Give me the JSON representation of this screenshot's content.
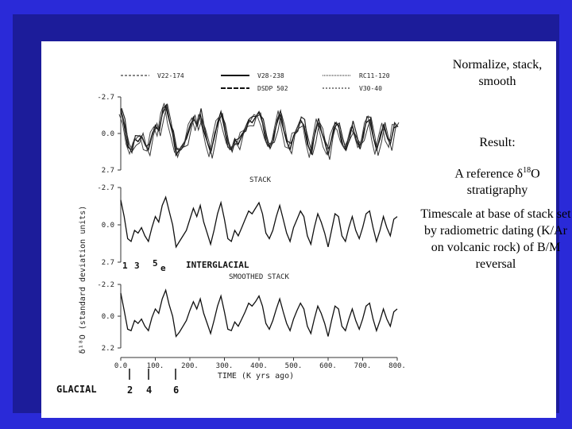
{
  "slide": {
    "caption": {
      "title": "Normalize, stack, smooth",
      "result_label": "Result:",
      "reference_prefix": "A reference δ",
      "reference_sup": "18",
      "reference_suffix": "O stratigraphy",
      "timescale": "Timescale at base of stack set by radiometric dating (K/Ar on volcanic rock) of B/M reversal"
    }
  },
  "figure": {
    "legend": [
      "V22-174",
      "V28-238",
      "RC11-120",
      "DSDP 502",
      "V30-40"
    ],
    "y_axis_label": "δ¹⁸O (standard deviation units)",
    "panel_labels": {
      "stack": "STACK",
      "smoothed": "SMOOTHED STACK"
    },
    "panels": [
      {
        "ticks": [
          "-2.7",
          "0.0",
          "2.7"
        ]
      },
      {
        "ticks": [
          "-2.7",
          "0.0",
          "2.7"
        ]
      },
      {
        "ticks": [
          "-2.2",
          "0.0",
          "2.2"
        ]
      }
    ],
    "x_ticks": [
      "0.0",
      "100.",
      "200.",
      "300.",
      "400.",
      "500.",
      "600.",
      "700.",
      "800."
    ],
    "x_label": "TIME (K yrs ago)",
    "annotations": {
      "interglacial": "INTERGLACIAL",
      "glacial": "GLACIAL",
      "interglacial_stages": [
        "1",
        "3",
        "5",
        "e"
      ],
      "glacial_stages": [
        "2",
        "4",
        "6"
      ]
    }
  },
  "chart_data": {
    "type": "line",
    "x": [
      0,
      10,
      20,
      30,
      40,
      50,
      60,
      70,
      80,
      90,
      100,
      110,
      120,
      130,
      140,
      150,
      160,
      170,
      180,
      190,
      200,
      210,
      220,
      230,
      240,
      250,
      260,
      270,
      280,
      290,
      300,
      310,
      320,
      330,
      340,
      350,
      360,
      370,
      380,
      390,
      400,
      410,
      420,
      430,
      440,
      450,
      460,
      470,
      480,
      490,
      500,
      510,
      520,
      530,
      540,
      550,
      560,
      570,
      580,
      590,
      600,
      610,
      620,
      630,
      640,
      650,
      660,
      670,
      680,
      690,
      700,
      710,
      720,
      730,
      740,
      750,
      760,
      770,
      780,
      790,
      800
    ],
    "series": [
      {
        "values": [
          -1.8,
          -0.6,
          1.0,
          1.2,
          0.4,
          0.6,
          0.2,
          0.8,
          1.2,
          0.2,
          -0.6,
          -0.2,
          -1.4,
          -2.0,
          -1.0,
          0.0,
          1.6,
          1.2,
          0.8,
          0.4,
          -0.4,
          -1.2,
          -0.6,
          -1.4,
          -0.2,
          0.6,
          1.4,
          0.4,
          -0.8,
          -1.6,
          -0.4,
          1.0,
          1.2,
          0.4,
          0.8,
          0.2,
          -0.4,
          -1.0,
          -0.8,
          -1.2,
          -1.6,
          -0.8,
          0.6,
          1.0,
          0.4,
          -0.6,
          -1.4,
          -0.4,
          0.6,
          1.2,
          0.2,
          -0.4,
          -1.0,
          -0.6,
          0.8,
          1.4,
          0.2,
          -0.8,
          -0.2,
          0.6,
          1.6,
          0.4,
          -0.8,
          -0.6,
          0.8,
          1.2,
          0.2,
          -0.6,
          0.4,
          1.0,
          0.2,
          -0.8,
          -1.0,
          0.2,
          1.2,
          0.4,
          -0.6,
          0.2,
          0.8,
          -0.4,
          -0.6
        ]
      },
      {
        "values": [
          -1.8,
          -0.6,
          1.0,
          1.2,
          0.4,
          0.6,
          0.2,
          0.8,
          1.2,
          0.2,
          -0.6,
          -0.2,
          -1.4,
          -2.0,
          -1.0,
          0.0,
          1.6,
          1.2,
          0.8,
          0.4,
          -0.4,
          -1.2,
          -0.6,
          -1.4,
          -0.2,
          0.6,
          1.4,
          0.4,
          -0.8,
          -1.6,
          -0.4,
          1.0,
          1.2,
          0.4,
          0.8,
          0.2,
          -0.4,
          -1.0,
          -0.8,
          -1.2,
          -1.6,
          -0.8,
          0.6,
          1.0,
          0.4,
          -0.6,
          -1.4,
          -0.4,
          0.6,
          1.2,
          0.2,
          -0.4,
          -1.0,
          -0.6,
          0.8,
          1.4,
          0.2,
          -0.8,
          -0.2,
          0.6,
          1.6,
          0.4,
          -0.8,
          -0.6,
          0.8,
          1.2,
          0.2,
          -0.6,
          0.4,
          1.0,
          0.2,
          -0.8,
          -1.0,
          0.2,
          1.2,
          0.4,
          -0.6,
          0.2,
          0.8,
          -0.4,
          -0.6
        ]
      },
      {
        "values": [
          -1.6,
          -0.4,
          0.9,
          1.0,
          0.3,
          0.5,
          0.2,
          0.7,
          1.0,
          0.1,
          -0.5,
          -0.2,
          -1.2,
          -1.8,
          -0.8,
          0.0,
          1.4,
          1.1,
          0.7,
          0.3,
          -0.4,
          -1.0,
          -0.5,
          -1.2,
          -0.2,
          0.5,
          1.2,
          0.3,
          -0.7,
          -1.4,
          -0.3,
          0.9,
          1.0,
          0.4,
          0.7,
          0.2,
          -0.3,
          -0.9,
          -0.7,
          -1.0,
          -1.4,
          -0.7,
          0.5,
          0.9,
          0.3,
          -0.5,
          -1.2,
          -0.3,
          0.5,
          1.0,
          0.2,
          -0.4,
          -0.9,
          -0.5,
          0.7,
          1.2,
          0.2,
          -0.7,
          -0.2,
          0.5,
          1.4,
          0.3,
          -0.7,
          -0.5,
          0.7,
          1.0,
          0.2,
          -0.5,
          0.3,
          0.9,
          0.2,
          -0.7,
          -0.9,
          0.2,
          1.0,
          0.3,
          -0.5,
          0.2,
          0.7,
          -0.3,
          -0.5
        ]
      }
    ],
    "panel_ylims": [
      [
        -2.7,
        2.7
      ],
      [
        -2.7,
        2.7
      ],
      [
        -2.2,
        2.2
      ]
    ],
    "xlim": [
      0,
      800
    ]
  }
}
